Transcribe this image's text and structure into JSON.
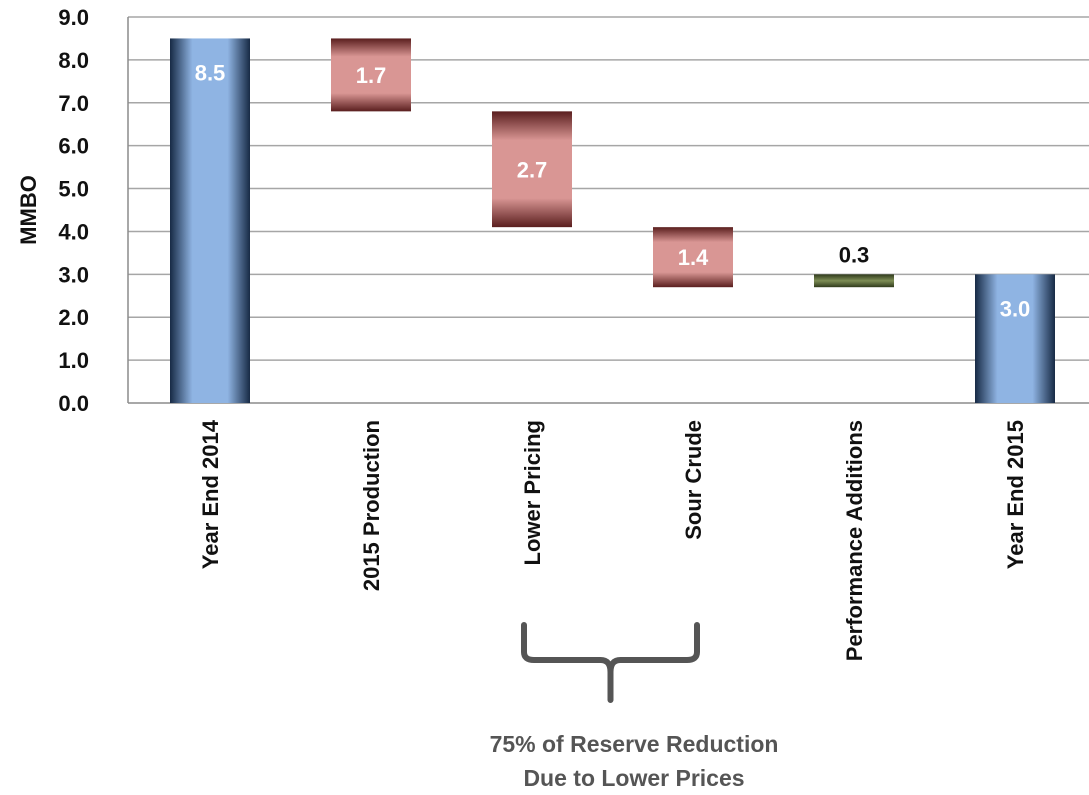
{
  "chart_data": {
    "type": "bar",
    "subtype": "waterfall",
    "ylabel": "MMBO",
    "xlabel": "",
    "ylim": [
      0,
      9
    ],
    "y_ticks": [
      "0.0",
      "1.0",
      "2.0",
      "3.0",
      "4.0",
      "5.0",
      "6.0",
      "7.0",
      "8.0",
      "9.0"
    ],
    "grid": true,
    "categories": [
      "Year End 2014",
      "2015 Production",
      "Lower Pricing",
      "Sour Crude",
      "Performance Additions",
      "Year End 2015"
    ],
    "bars": [
      {
        "category": "Year End 2014",
        "kind": "total",
        "base": 0,
        "top": 8.5,
        "label": "8.5"
      },
      {
        "category": "2015 Production",
        "kind": "decrease",
        "base": 6.8,
        "top": 8.5,
        "label": "1.7"
      },
      {
        "category": "Lower Pricing",
        "kind": "decrease",
        "base": 4.1,
        "top": 6.8,
        "label": "2.7"
      },
      {
        "category": "Sour Crude",
        "kind": "decrease",
        "base": 2.7,
        "top": 4.1,
        "label": "1.4"
      },
      {
        "category": "Performance Additions",
        "kind": "increase",
        "base": 2.7,
        "top": 3.0,
        "label": "0.3"
      },
      {
        "category": "Year End 2015",
        "kind": "total",
        "base": 0,
        "top": 3.0,
        "label": "3.0"
      }
    ],
    "colors": {
      "total": "#8fb4e3",
      "decrease": "#d99694",
      "increase": "#6f7f4e"
    },
    "annotation": {
      "lines": [
        "75% of Reserve Reduction",
        "Due to Lower Prices"
      ],
      "spans": [
        "Lower Pricing",
        "Sour Crude"
      ]
    }
  }
}
